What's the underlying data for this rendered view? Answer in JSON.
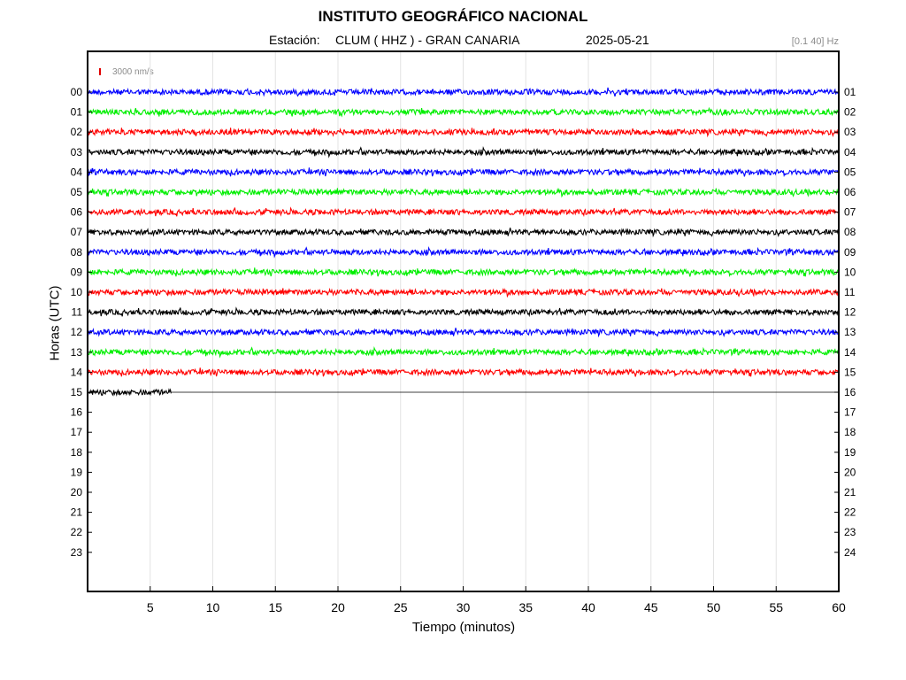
{
  "header": {
    "title": "INSTITUTO GEOGRÁFICO NACIONAL",
    "station_label": "Estación:",
    "station": "CLUM ( HHZ ) - GRAN CANARIA",
    "date": "2025-05-21",
    "filter": "[0.1 40] Hz",
    "scale": "3000 nm/s"
  },
  "chart_data": {
    "type": "line",
    "title": "INSTITUTO GEOGRÁFICO NACIONAL",
    "xlabel": "Tiempo (minutos)",
    "ylabel": "Horas (UTC)",
    "xlim": [
      0,
      60
    ],
    "x_ticks": [
      5,
      10,
      15,
      20,
      25,
      30,
      35,
      40,
      45,
      50,
      55,
      60
    ],
    "y_ticks_left": [
      "00",
      "01",
      "02",
      "03",
      "04",
      "05",
      "06",
      "07",
      "08",
      "09",
      "10",
      "11",
      "12",
      "13",
      "14",
      "15",
      "16",
      "17",
      "18",
      "19",
      "20",
      "21",
      "22",
      "23"
    ],
    "y_ticks_right": [
      "01",
      "02",
      "03",
      "04",
      "05",
      "06",
      "07",
      "08",
      "09",
      "10",
      "11",
      "12",
      "13",
      "14",
      "15",
      "16",
      "17",
      "18",
      "19",
      "20",
      "21",
      "22",
      "23",
      "24"
    ],
    "grid": "vertical",
    "trace_colors": [
      "#0000ff",
      "#00ee00",
      "#ff0000",
      "#000000"
    ],
    "series": [
      {
        "hour": "00",
        "end_minute": 60,
        "color": "#0000ff"
      },
      {
        "hour": "01",
        "end_minute": 60,
        "color": "#00ee00"
      },
      {
        "hour": "02",
        "end_minute": 60,
        "color": "#ff0000"
      },
      {
        "hour": "03",
        "end_minute": 60,
        "color": "#000000"
      },
      {
        "hour": "04",
        "end_minute": 60,
        "color": "#0000ff"
      },
      {
        "hour": "05",
        "end_minute": 60,
        "color": "#00ee00"
      },
      {
        "hour": "06",
        "end_minute": 60,
        "color": "#ff0000"
      },
      {
        "hour": "07",
        "end_minute": 60,
        "color": "#000000"
      },
      {
        "hour": "08",
        "end_minute": 60,
        "color": "#0000ff"
      },
      {
        "hour": "09",
        "end_minute": 60,
        "color": "#00ee00"
      },
      {
        "hour": "10",
        "end_minute": 60,
        "color": "#ff0000"
      },
      {
        "hour": "11",
        "end_minute": 60,
        "color": "#000000"
      },
      {
        "hour": "12",
        "end_minute": 60,
        "color": "#0000ff"
      },
      {
        "hour": "13",
        "end_minute": 60,
        "color": "#00ee00"
      },
      {
        "hour": "14",
        "end_minute": 60,
        "color": "#ff0000"
      },
      {
        "hour": "15",
        "end_minute": 6.7,
        "color": "#000000"
      }
    ]
  }
}
